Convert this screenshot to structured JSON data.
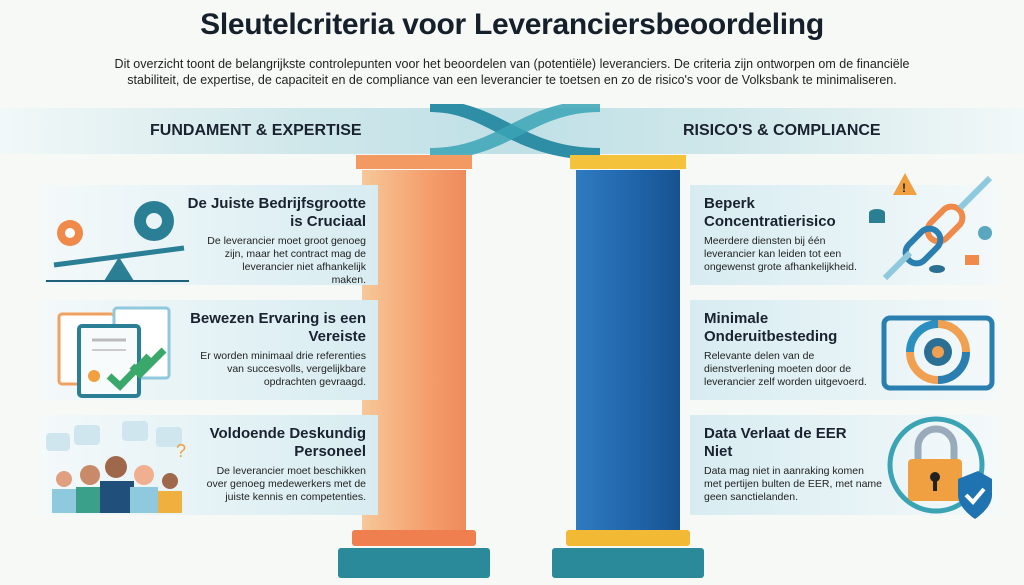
{
  "title": "Sleutelcriteria voor Leveranciersbeoordeling",
  "subtitle": "Dit overzicht toont de belangrijkste controlepunten voor het beoordelen van (potentiële) leveranciers. De criteria zijn ontworpen om de financiële stabiliteit, de expertise, de capaciteit en de compliance van een leverancier te toetsen en zo de risico's voor de Volksbank te minimaliseren.",
  "colors": {
    "left_pillar": "#f5a06e",
    "right_pillar": "#1f63a8",
    "accent_teal": "#2b7f94"
  },
  "left": {
    "heading": "FUNDAMENT & EXPERTISE",
    "items": [
      {
        "title": "De Juiste Bedrijfsgrootte is Cruciaal",
        "text": "De leverancier moet groot genoeg zijn, maar het contract mag de leverancier niet afhankelijk maken.",
        "icon": "gear-balance-icon"
      },
      {
        "title": "Bewezen Ervaring is een Vereiste",
        "text": "Er worden minimaal drie referenties van succesvolls, vergelijkbare opdrachten gevraagd.",
        "icon": "certificate-check-icon"
      },
      {
        "title": "Voldoende Deskundig Personeel",
        "text": "De leverancier moet beschikken over genoeg medewerkers met de juiste kennis en competenties.",
        "icon": "team-icon"
      }
    ]
  },
  "right": {
    "heading": "RISICO'S & COMPLIANCE",
    "items": [
      {
        "title": "Beperk Concentratierisico",
        "text": "Meerdere diensten bij één leverancier kan leiden tot een ongewenst grote afhankelijkheid.",
        "icon": "chain-link-icon"
      },
      {
        "title": "Minimale Onderuitbesteding",
        "text": "Relevante delen van de dienstverlening moeten door de leverancier zelf worden uitgevoerd.",
        "icon": "gear-cycle-icon"
      },
      {
        "title": "Data Verlaat de EER Niet",
        "text": "Data mag niet in aanraking komen met pertijen bulten de EER, met name geen sanctielanden.",
        "icon": "lock-shield-icon"
      }
    ]
  }
}
